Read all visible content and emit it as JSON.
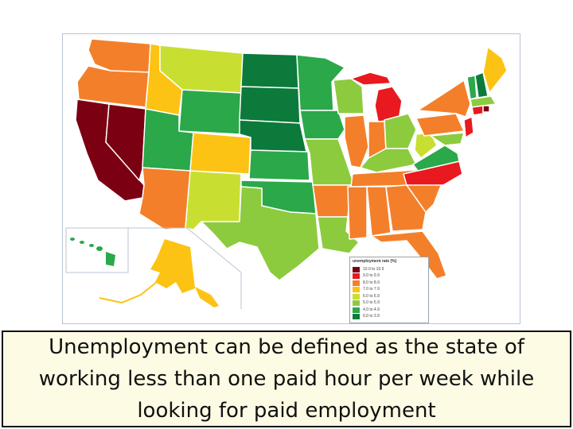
{
  "legend": {
    "title": "unemployment rate (%)",
    "items": [
      {
        "label": "10.0  to  10.9",
        "color": "#7b0012"
      },
      {
        "label": "9.0  to  9.9",
        "color": "#e8191f"
      },
      {
        "label": "8.0  to  8.9",
        "color": "#f47f2a"
      },
      {
        "label": "7.0  to  7.9",
        "color": "#fcc314"
      },
      {
        "label": "6.0  to  6.9",
        "color": "#c8df31"
      },
      {
        "label": "5.0  to  5.9",
        "color": "#8ccb3e"
      },
      {
        "label": "4.0  to  4.9",
        "color": "#2aa84a"
      },
      {
        "label": "0.0  to  3.9",
        "color": "#0b7a3b"
      }
    ]
  },
  "colors": {
    "bin10": "#7b0012",
    "bin9": "#e8191f",
    "bin8": "#f47f2a",
    "bin7": "#fcc314",
    "bin6": "#c8df31",
    "bin5": "#8ccb3e",
    "bin4": "#2aa84a",
    "bin3": "#0b7a3b"
  },
  "caption": "Unemployment can be defined as the state of working less than one paid hour per week while looking for paid employment"
}
